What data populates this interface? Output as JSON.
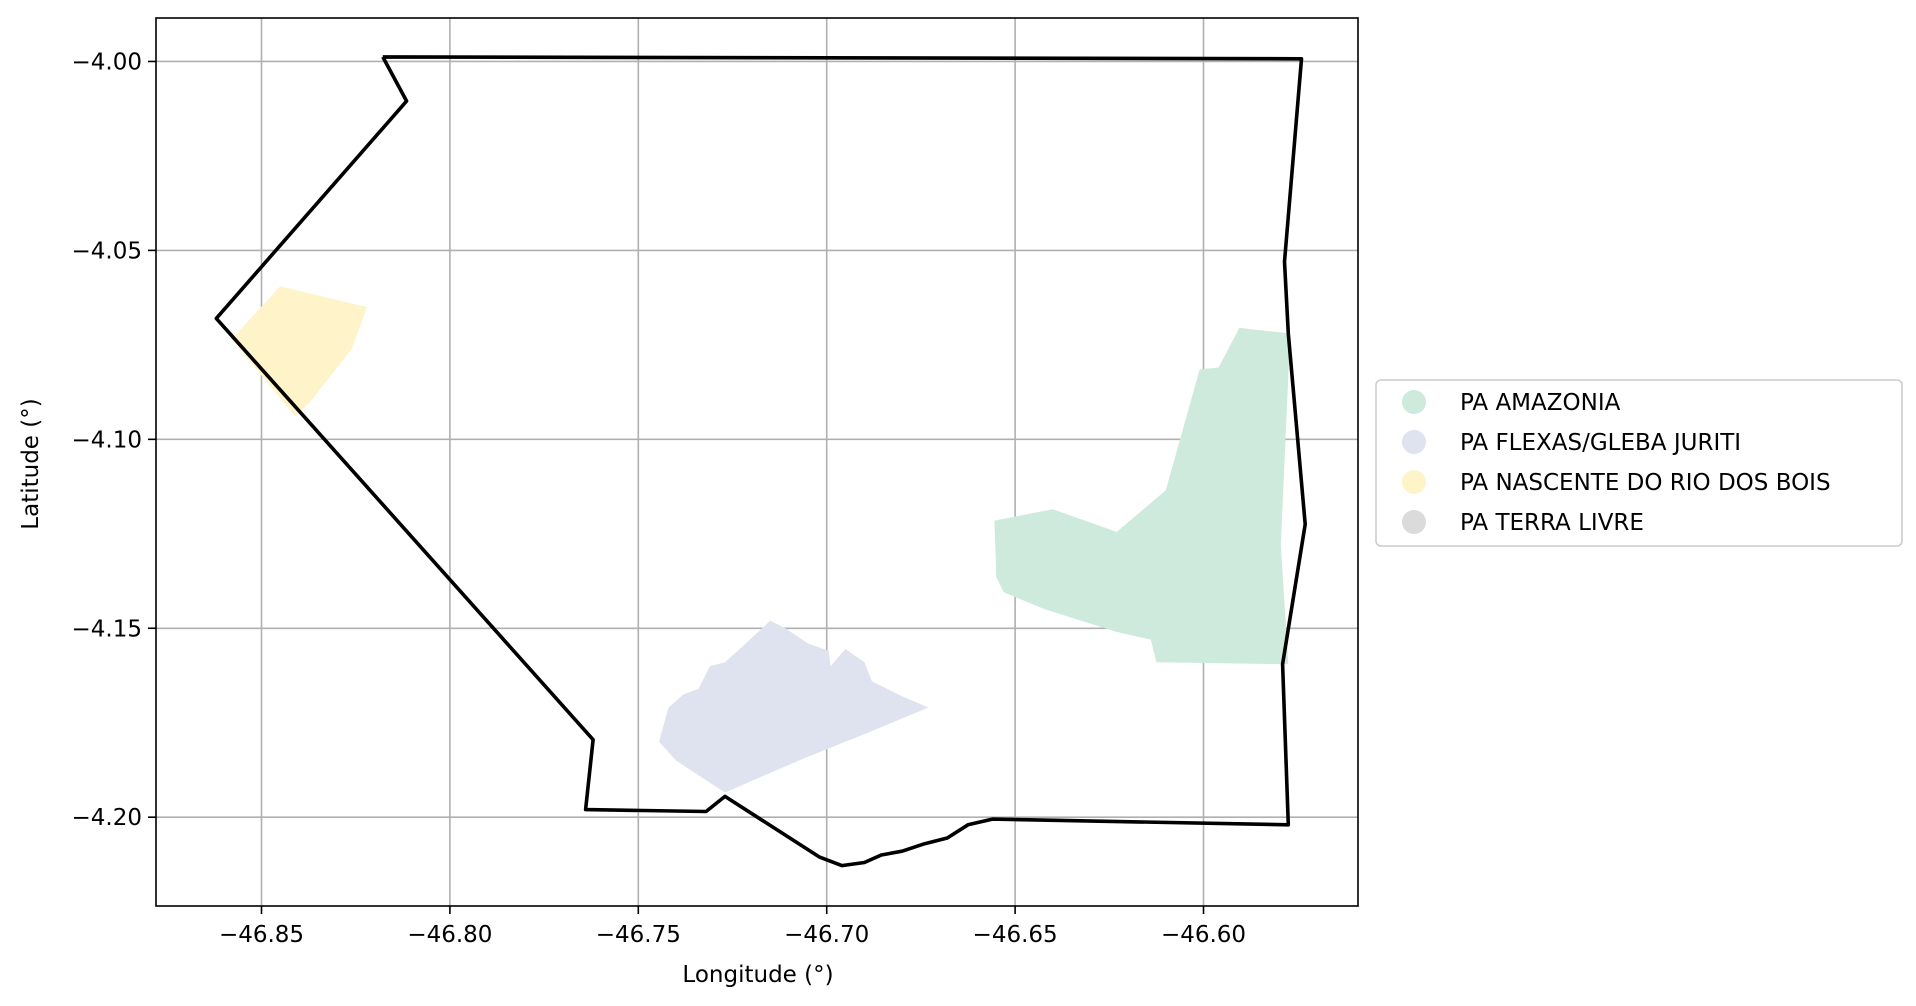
{
  "chart_data": {
    "type": "map",
    "xlabel": "Longitude (°)",
    "ylabel": "Latitude (°)",
    "xlim": [
      -46.878,
      -46.559
    ],
    "ylim": [
      -4.2235,
      -3.9885
    ],
    "grid": true,
    "x_ticks": [
      {
        "value": -46.85,
        "label": "−46.85"
      },
      {
        "value": -46.8,
        "label": "−46.80"
      },
      {
        "value": -46.75,
        "label": "−46.75"
      },
      {
        "value": -46.7,
        "label": "−46.70"
      },
      {
        "value": -46.65,
        "label": "−46.65"
      },
      {
        "value": -46.6,
        "label": "−46.60"
      }
    ],
    "y_ticks": [
      {
        "value": -4.0,
        "label": "−4.00"
      },
      {
        "value": -4.05,
        "label": "−4.05"
      },
      {
        "value": -4.1,
        "label": "−4.10"
      },
      {
        "value": -4.15,
        "label": "−4.15"
      },
      {
        "value": -4.2,
        "label": "−4.20"
      }
    ],
    "legend_position": "center-right",
    "legend": [
      {
        "label": "PA AMAZONIA",
        "color": "#cdeadc"
      },
      {
        "label": "PA FLEXAS/GLEBA JURITI",
        "color": "#dfe3f0"
      },
      {
        "label": "PA NASCENTE DO RIO DOS BOIS",
        "color": "#fff4c9"
      },
      {
        "label": "PA TERRA LIVRE",
        "color": "#dbdbdb"
      }
    ],
    "boundary": {
      "stroke": "#000000",
      "coords": [
        [
          -46.8178,
          -3.9988
        ],
        [
          -46.574,
          -3.9993
        ],
        [
          -46.5785,
          -4.053
        ],
        [
          -46.5775,
          -4.072
        ],
        [
          -46.573,
          -4.1225
        ],
        [
          -46.579,
          -4.1595
        ],
        [
          -46.5775,
          -4.202
        ],
        [
          -46.656,
          -4.2005
        ],
        [
          -46.6625,
          -4.202
        ],
        [
          -46.668,
          -4.2055
        ],
        [
          -46.674,
          -4.207
        ],
        [
          -46.68,
          -4.209
        ],
        [
          -46.6855,
          -4.21
        ],
        [
          -46.69,
          -4.212
        ],
        [
          -46.696,
          -4.2128
        ],
        [
          -46.702,
          -4.2105
        ],
        [
          -46.727,
          -4.1945
        ],
        [
          -46.732,
          -4.1985
        ],
        [
          -46.764,
          -4.198
        ],
        [
          -46.762,
          -4.1795
        ],
        [
          -46.862,
          -4.068
        ],
        [
          -46.8115,
          -4.0105
        ],
        [
          -46.8178,
          -3.9988
        ]
      ]
    },
    "areas": [
      {
        "name": "PA AMAZONIA",
        "color": "#cdeadc",
        "coords": [
          [
            -46.6555,
            -4.1215
          ],
          [
            -46.64,
            -4.1185
          ],
          [
            -46.623,
            -4.1245
          ],
          [
            -46.61,
            -4.1135
          ],
          [
            -46.601,
            -4.0815
          ],
          [
            -46.596,
            -4.081
          ],
          [
            -46.5905,
            -4.0705
          ],
          [
            -46.577,
            -4.072
          ],
          [
            -46.5795,
            -4.128
          ],
          [
            -46.5775,
            -4.1595
          ],
          [
            -46.6125,
            -4.159
          ],
          [
            -46.614,
            -4.153
          ],
          [
            -46.623,
            -4.151
          ],
          [
            -46.642,
            -4.145
          ],
          [
            -46.653,
            -4.1405
          ],
          [
            -46.655,
            -4.1365
          ]
        ]
      },
      {
        "name": "PA FLEXAS/GLEBA JURITI",
        "color": "#dfe3f0",
        "coords": [
          [
            -46.7445,
            -4.18
          ],
          [
            -46.742,
            -4.171
          ],
          [
            -46.738,
            -4.1675
          ],
          [
            -46.734,
            -4.166
          ],
          [
            -46.731,
            -4.16
          ],
          [
            -46.727,
            -4.159
          ],
          [
            -46.722,
            -4.1545
          ],
          [
            -46.715,
            -4.148
          ],
          [
            -46.711,
            -4.15
          ],
          [
            -46.705,
            -4.154
          ],
          [
            -46.6995,
            -4.156
          ],
          [
            -46.699,
            -4.16
          ],
          [
            -46.695,
            -4.1555
          ],
          [
            -46.69,
            -4.159
          ],
          [
            -46.688,
            -4.164
          ],
          [
            -46.68,
            -4.168
          ],
          [
            -46.673,
            -4.171
          ],
          [
            -46.69,
            -4.178
          ],
          [
            -46.705,
            -4.184
          ],
          [
            -46.719,
            -4.19
          ],
          [
            -46.727,
            -4.1935
          ],
          [
            -46.74,
            -4.185
          ]
        ]
      },
      {
        "name": "PA NASCENTE DO RIO DOS BOIS",
        "color": "#fff4c9",
        "coords": [
          [
            -46.845,
            -4.0595
          ],
          [
            -46.822,
            -4.065
          ],
          [
            -46.826,
            -4.076
          ],
          [
            -46.837,
            -4.09
          ],
          [
            -46.841,
            -4.094
          ],
          [
            -46.858,
            -4.0735
          ]
        ]
      }
    ]
  }
}
